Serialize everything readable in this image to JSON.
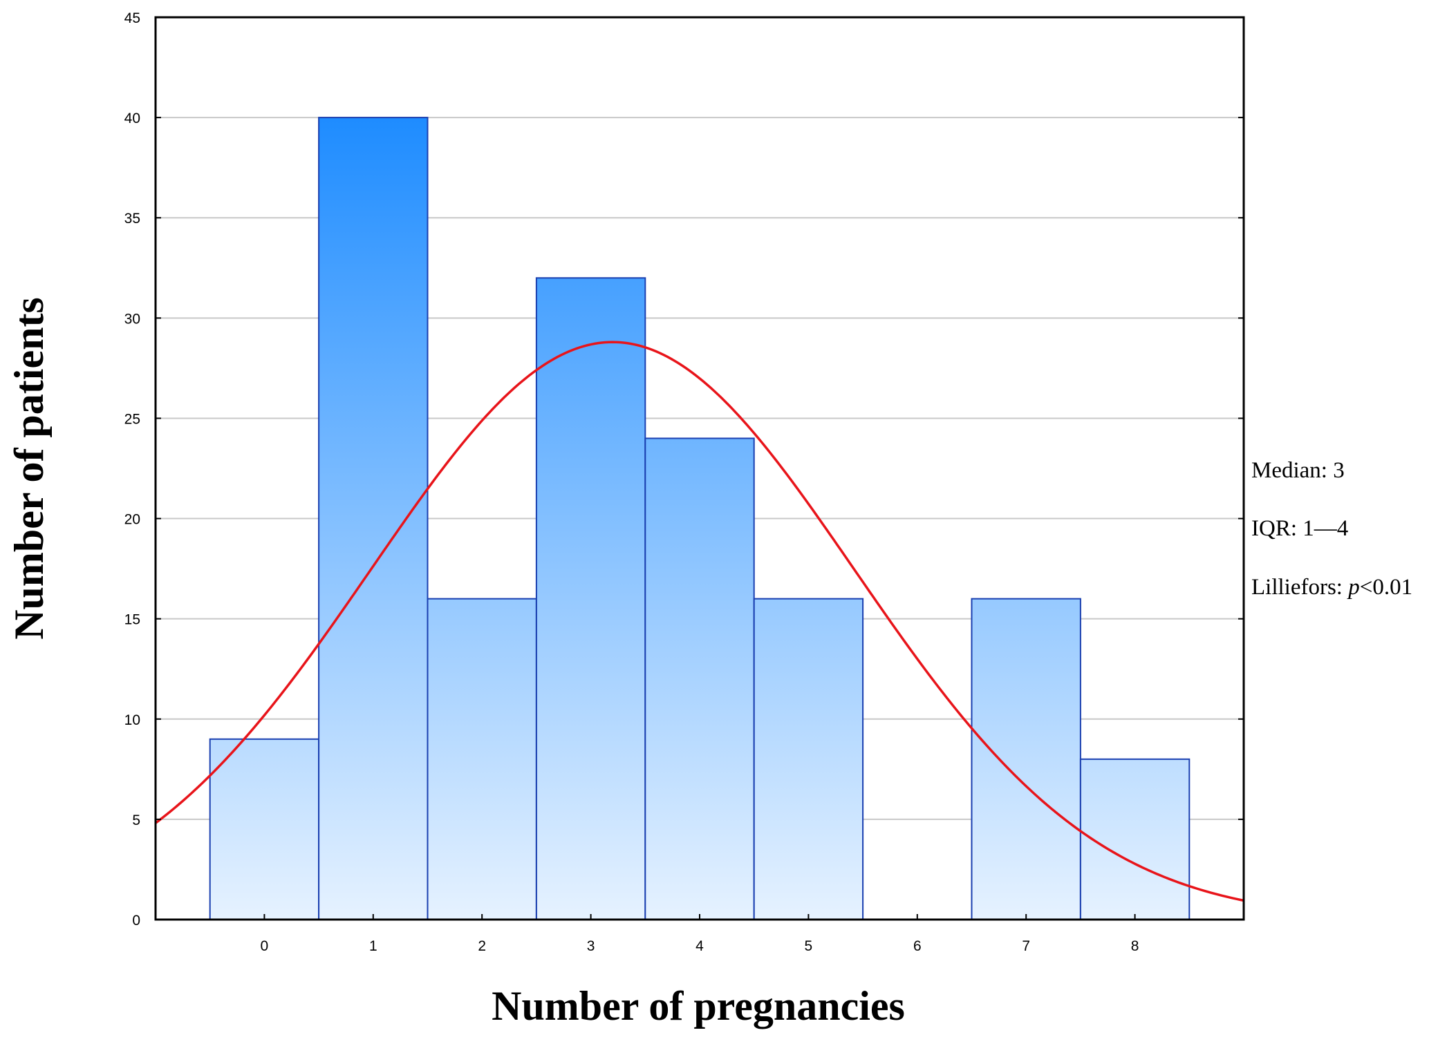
{
  "chart_data": {
    "type": "bar",
    "xlabel": "Number of pregnancies",
    "ylabel": "Number of patients",
    "categories": [
      "0",
      "1",
      "2",
      "3",
      "4",
      "5",
      "6",
      "7",
      "8"
    ],
    "x": [
      0,
      1,
      2,
      3,
      4,
      5,
      6,
      7,
      8
    ],
    "values": [
      9,
      40,
      16,
      32,
      24,
      16,
      0,
      16,
      8
    ],
    "xlim": [
      -1,
      9
    ],
    "ylim": [
      0,
      45
    ],
    "yticks": [
      0,
      5,
      10,
      15,
      20,
      25,
      30,
      35,
      40,
      45
    ],
    "grid": true,
    "bar_color_top": "#1e8cff",
    "bar_color_bottom": "#e6f2ff",
    "bar_edge_color": "#1a3fb0",
    "curve_color": "#e8141a",
    "fit_curve": {
      "type": "normal",
      "mean": 3.2,
      "peak": 28.8,
      "sd": 2.22
    },
    "annotations": [
      {
        "text": "Median: 3"
      },
      {
        "text": "IQR: 1—4"
      },
      {
        "label": "Lilliefors: ",
        "italic": "p",
        "rest": "<0.01"
      }
    ]
  }
}
